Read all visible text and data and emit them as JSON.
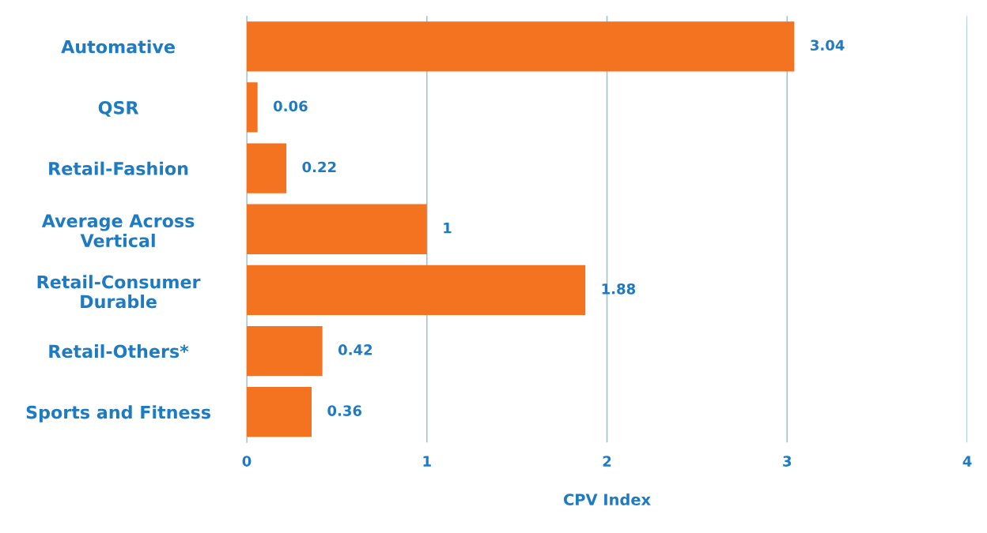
{
  "chart_data": {
    "type": "bar",
    "orientation": "horizontal",
    "xlabel": "CPV Index",
    "categories": [
      "Automative",
      "QSR",
      "Retail-Fashion",
      "Average Across\nVertical",
      "Retail-Consumer\nDurable",
      "Retail-Others*",
      "Sports and Fitness"
    ],
    "values": [
      3.04,
      0.06,
      0.22,
      1,
      1.88,
      0.42,
      0.36
    ],
    "color": "#f47321",
    "xlim": [
      0,
      4
    ],
    "xticks": [
      0,
      1,
      2,
      3,
      4
    ],
    "grid": "x",
    "data_labels": true,
    "legend": false
  }
}
